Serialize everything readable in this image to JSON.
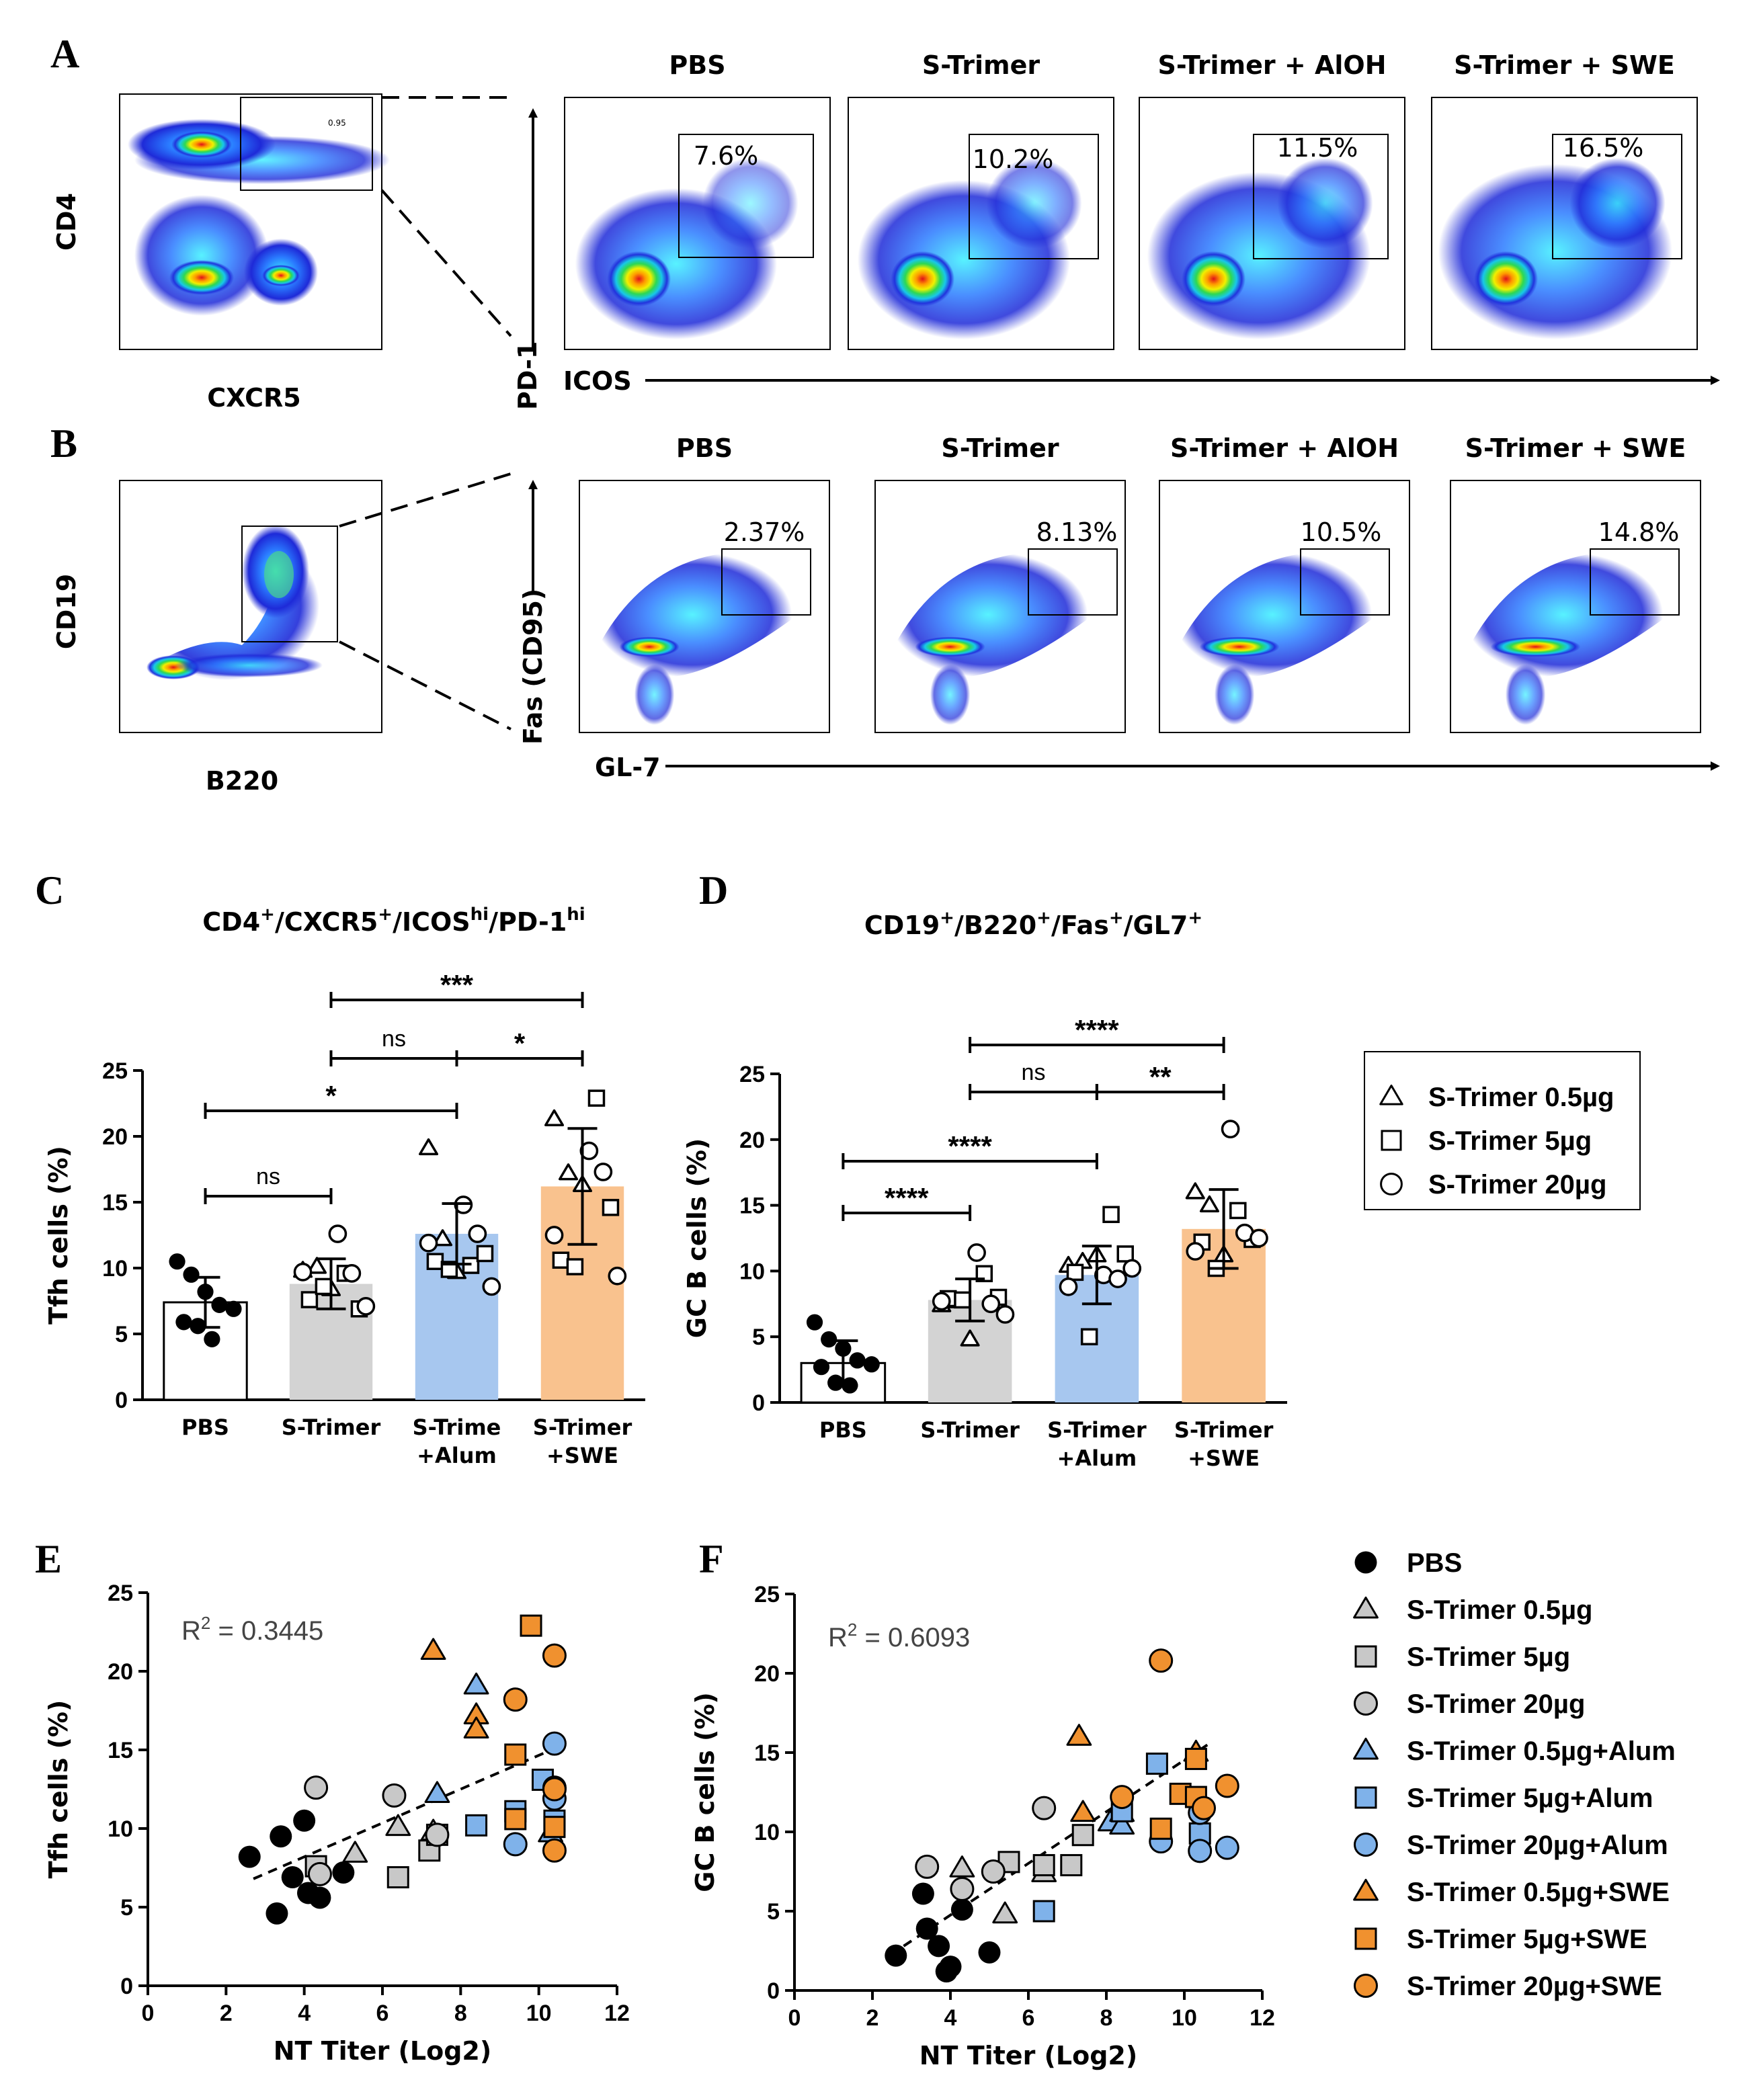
{
  "panel_letters": [
    "A",
    "B",
    "C",
    "D",
    "E",
    "F"
  ],
  "flow": {
    "conditions": [
      "PBS",
      "S-Trimer",
      "S-Trimer + AlOH",
      "S-Trimer + SWE"
    ],
    "A": {
      "gate_x": "CXCR5",
      "gate_y": "CD4",
      "gate_value": "0.95",
      "x_label": "ICOS",
      "y_label": "PD-1",
      "percentages": [
        "7.6%",
        "10.2%",
        "11.5%",
        "16.5%"
      ]
    },
    "B": {
      "gate_x": "B220",
      "gate_y": "CD19",
      "x_label": "GL-7",
      "y_label": "Fas (CD95)",
      "percentages": [
        "2.37%",
        "8.13%",
        "10.5%",
        "14.8%"
      ]
    }
  },
  "chart_data": [
    {
      "id": "C",
      "type": "bar",
      "title_parts": [
        {
          "text": "CD4",
          "sup": "+"
        },
        {
          "text": "/CXCR5",
          "sup": "+"
        },
        {
          "text": "/ICOS",
          "sup": "hi"
        },
        {
          "text": "/PD-1",
          "sup": "hi"
        }
      ],
      "ylabel": "Tfh cells (%)",
      "ylim": [
        0,
        25
      ],
      "yticks": [
        0,
        5,
        10,
        15,
        20,
        25
      ],
      "categories": [
        [
          "PBS"
        ],
        [
          "S-Trimer"
        ],
        [
          "S-Trime",
          "+Alum"
        ],
        [
          "S-Trimer",
          "+SWE"
        ]
      ],
      "colors": [
        "#ffffff",
        "#d3d3d3",
        "#a7c7ef",
        "#f9c28e"
      ],
      "means": [
        7.4,
        8.8,
        12.6,
        16.2
      ],
      "sd": [
        1.9,
        1.9,
        2.3,
        4.4
      ],
      "points": [
        {
          "tri": [],
          "sq": [],
          "circ": [],
          "dot": [
            10.5,
            9.5,
            8.2,
            7.2,
            6.9,
            5.9,
            5.6,
            4.6
          ]
        },
        {
          "tri": [
            9.8,
            10.1,
            8.4
          ],
          "sq": [
            9.6,
            6.9,
            7.6,
            8.6
          ],
          "circ": [
            12.6,
            9.6,
            7.1,
            9.7
          ]
        },
        {
          "tri": [
            19.1,
            12.2,
            9.7
          ],
          "sq": [
            10.2,
            11.1,
            10.5,
            9.9
          ],
          "circ": [
            14.8,
            12.6,
            8.6,
            11.9
          ]
        },
        {
          "tri": [
            21.3,
            17.2,
            16.3
          ],
          "sq": [
            22.9,
            14.6,
            10.6,
            10.1
          ],
          "circ": [
            18.9,
            17.3,
            9.4,
            12.5
          ]
        }
      ],
      "comparisons": [
        {
          "from": 1,
          "to": 3,
          "label": "***"
        },
        {
          "from": 1,
          "to": 2,
          "label": "ns"
        },
        {
          "from": 2,
          "to": 3,
          "label": "*"
        },
        {
          "from": 0,
          "to": 2,
          "label": "*"
        },
        {
          "from": 0,
          "to": 1,
          "label": "ns"
        }
      ]
    },
    {
      "id": "D",
      "type": "bar",
      "title_parts": [
        {
          "text": "CD19",
          "sup": "+"
        },
        {
          "text": "/B220",
          "sup": "+"
        },
        {
          "text": "/Fas",
          "sup": "+"
        },
        {
          "text": "/GL7",
          "sup": "+"
        }
      ],
      "ylabel": "GC B cells (%)",
      "ylim": [
        0,
        25
      ],
      "yticks": [
        0,
        5,
        10,
        15,
        20,
        25
      ],
      "categories": [
        [
          "PBS"
        ],
        [
          "S-Trimer"
        ],
        [
          "S-Trimer",
          "+Alum"
        ],
        [
          "S-Trimer",
          "+SWE"
        ]
      ],
      "colors": [
        "#ffffff",
        "#d3d3d3",
        "#a7c7ef",
        "#f9c28e"
      ],
      "means": [
        3.0,
        7.8,
        9.7,
        13.2
      ],
      "sd": [
        1.7,
        1.6,
        2.2,
        3.0
      ],
      "points": [
        {
          "tri": [],
          "sq": [],
          "circ": [],
          "dot": [
            6.1,
            4.8,
            4.1,
            3.2,
            2.9,
            2.7,
            1.5,
            1.3
          ]
        },
        {
          "tri": [
            7.4,
            7.7,
            4.8
          ],
          "sq": [
            9.8,
            8.0,
            7.9,
            7.8
          ],
          "circ": [
            11.4,
            7.5,
            6.7,
            7.7
          ]
        },
        {
          "tri": [
            10.4,
            10.7,
            11.2
          ],
          "sq": [
            14.3,
            11.3,
            9.9,
            5.0
          ],
          "circ": [
            9.7,
            9.4,
            10.2,
            8.8
          ]
        },
        {
          "tri": [
            16.0,
            15.0,
            11.2
          ],
          "sq": [
            14.6,
            12.4,
            12.2,
            10.2
          ],
          "circ": [
            20.8,
            12.9,
            12.5,
            11.5
          ]
        }
      ],
      "comparisons": [
        {
          "from": 1,
          "to": 3,
          "label": "****"
        },
        {
          "from": 1,
          "to": 2,
          "label": "ns"
        },
        {
          "from": 2,
          "to": 3,
          "label": "**"
        },
        {
          "from": 0,
          "to": 2,
          "label": "****"
        },
        {
          "from": 0,
          "to": 1,
          "label": "****"
        }
      ]
    },
    {
      "id": "E",
      "type": "scatter",
      "xlabel": "NT Titer (Log2)",
      "ylabel": "Tfh cells (%)",
      "xlim": [
        0,
        12
      ],
      "ylim": [
        0,
        25
      ],
      "xticks": [
        0,
        2,
        4,
        6,
        8,
        10,
        12
      ],
      "yticks": [
        0,
        5,
        10,
        15,
        20,
        25
      ],
      "r2_label": "R",
      "r2_value": " = 0.3445",
      "fit": {
        "x": [
          2.7,
          10.6
        ],
        "y": [
          6.8,
          15.3
        ]
      },
      "series": [
        {
          "name": "PBS",
          "shape": "dot",
          "color": "#000000",
          "x": [
            2.6,
            3.3,
            3.4,
            3.7,
            4.0,
            4.1,
            4.4,
            5.0
          ],
          "y": [
            8.2,
            4.6,
            9.5,
            6.9,
            10.5,
            5.9,
            5.6,
            7.2
          ]
        },
        {
          "name": "S-Trimer 0.5µg",
          "shape": "tri",
          "color": "#c8c8c8",
          "x": [
            5.3,
            6.4,
            7.3
          ],
          "y": [
            8.4,
            10.1,
            9.8
          ]
        },
        {
          "name": "S-Trimer 5µg",
          "shape": "sq",
          "color": "#c8c8c8",
          "x": [
            6.4,
            7.2,
            7.4,
            4.3
          ],
          "y": [
            6.9,
            8.6,
            9.6,
            7.6
          ]
        },
        {
          "name": "S-Trimer 20µg",
          "shape": "circ",
          "color": "#c8c8c8",
          "x": [
            4.3,
            6.3,
            7.4,
            4.4
          ],
          "y": [
            12.6,
            12.1,
            9.6,
            7.1
          ]
        },
        {
          "name": "S-Trimer 0.5µg+Alum",
          "shape": "tri",
          "color": "#7fb2ea",
          "x": [
            8.4,
            7.4,
            10.3
          ],
          "y": [
            19.1,
            12.2,
            9.7
          ]
        },
        {
          "name": "S-Trimer 5µg+Alum",
          "shape": "sq",
          "color": "#7fb2ea",
          "x": [
            8.4,
            9.4,
            10.1,
            10.4
          ],
          "y": [
            10.2,
            11.1,
            13.1,
            10.5
          ]
        },
        {
          "name": "S-Trimer 20µg+Alum",
          "shape": "circ",
          "color": "#7fb2ea",
          "x": [
            10.4,
            10.4,
            9.4,
            10.4
          ],
          "y": [
            15.4,
            12.6,
            9.0,
            11.9
          ]
        },
        {
          "name": "S-Trimer 0.5µg+SWE",
          "shape": "tri",
          "color": "#f0912f",
          "x": [
            7.3,
            8.4,
            8.4
          ],
          "y": [
            21.3,
            17.2,
            16.3
          ]
        },
        {
          "name": "S-Trimer 5µg+SWE",
          "shape": "sq",
          "color": "#f0912f",
          "x": [
            9.8,
            9.4,
            9.4,
            10.4
          ],
          "y": [
            22.9,
            14.7,
            10.6,
            10.1
          ]
        },
        {
          "name": "S-Trimer 20µg+SWE",
          "shape": "circ",
          "color": "#f0912f",
          "x": [
            9.4,
            10.4,
            10.4,
            10.4
          ],
          "y": [
            18.2,
            21.0,
            8.6,
            12.5
          ]
        }
      ]
    },
    {
      "id": "F",
      "type": "scatter",
      "xlabel": "NT Titer (Log2)",
      "ylabel": "GC B cells (%)",
      "xlim": [
        0,
        12
      ],
      "ylim": [
        0,
        25
      ],
      "xticks": [
        0,
        2,
        4,
        6,
        8,
        10,
        12
      ],
      "yticks": [
        0,
        5,
        10,
        15,
        20,
        25
      ],
      "r2_label": "R",
      "r2_value": " = 0.6093",
      "fit": {
        "x": [
          2.8,
          10.6
        ],
        "y": [
          2.8,
          15.5
        ]
      },
      "series": [
        {
          "name": "PBS",
          "shape": "dot",
          "color": "#000000",
          "x": [
            2.6,
            3.3,
            3.4,
            3.7,
            3.9,
            4.0,
            4.3,
            5.0
          ],
          "y": [
            2.2,
            6.1,
            3.9,
            2.8,
            1.2,
            1.5,
            5.1,
            2.4
          ]
        },
        {
          "name": "S-Trimer 0.5µg",
          "shape": "tri",
          "color": "#c8c8c8",
          "x": [
            4.3,
            5.4,
            6.4
          ],
          "y": [
            7.7,
            4.8,
            7.4
          ]
        },
        {
          "name": "S-Trimer 5µg",
          "shape": "sq",
          "color": "#c8c8c8",
          "x": [
            5.5,
            6.4,
            7.1,
            7.4
          ],
          "y": [
            8.1,
            7.9,
            7.9,
            9.8
          ]
        },
        {
          "name": "S-Trimer 20µg",
          "shape": "circ",
          "color": "#c8c8c8",
          "x": [
            3.4,
            4.3,
            5.1,
            6.4
          ],
          "y": [
            7.8,
            6.4,
            7.5,
            11.5
          ]
        },
        {
          "name": "S-Trimer 0.5µg+Alum",
          "shape": "tri",
          "color": "#7fb2ea",
          "x": [
            8.1,
            8.4,
            8.4
          ],
          "y": [
            10.6,
            10.4,
            11.2
          ]
        },
        {
          "name": "S-Trimer 5µg+Alum",
          "shape": "sq",
          "color": "#7fb2ea",
          "x": [
            6.4,
            9.3,
            8.4,
            10.4
          ],
          "y": [
            5.0,
            14.3,
            11.3,
            9.9
          ]
        },
        {
          "name": "S-Trimer 20µg+Alum",
          "shape": "circ",
          "color": "#7fb2ea",
          "x": [
            9.4,
            10.4,
            10.4,
            11.1
          ],
          "y": [
            9.4,
            11.2,
            8.8,
            9.0
          ]
        },
        {
          "name": "S-Trimer 0.5µg+SWE",
          "shape": "tri",
          "color": "#f0912f",
          "x": [
            7.3,
            7.4,
            10.3
          ],
          "y": [
            16.0,
            11.2,
            15.0
          ]
        },
        {
          "name": "S-Trimer 5µg+SWE",
          "shape": "sq",
          "color": "#f0912f",
          "x": [
            10.3,
            9.9,
            10.3,
            9.4
          ],
          "y": [
            14.6,
            12.4,
            12.2,
            10.2
          ]
        },
        {
          "name": "S-Trimer 20µg+SWE",
          "shape": "circ",
          "color": "#f0912f",
          "x": [
            9.4,
            11.1,
            8.4,
            10.5
          ],
          "y": [
            20.8,
            12.9,
            12.2,
            11.5
          ]
        }
      ]
    }
  ],
  "legend_cd": [
    {
      "shape": "tri",
      "label": "S-Trimer 0.5µg"
    },
    {
      "shape": "sq",
      "label": "S-Trimer 5µg"
    },
    {
      "shape": "circ",
      "label": "S-Trimer 20µg"
    }
  ]
}
